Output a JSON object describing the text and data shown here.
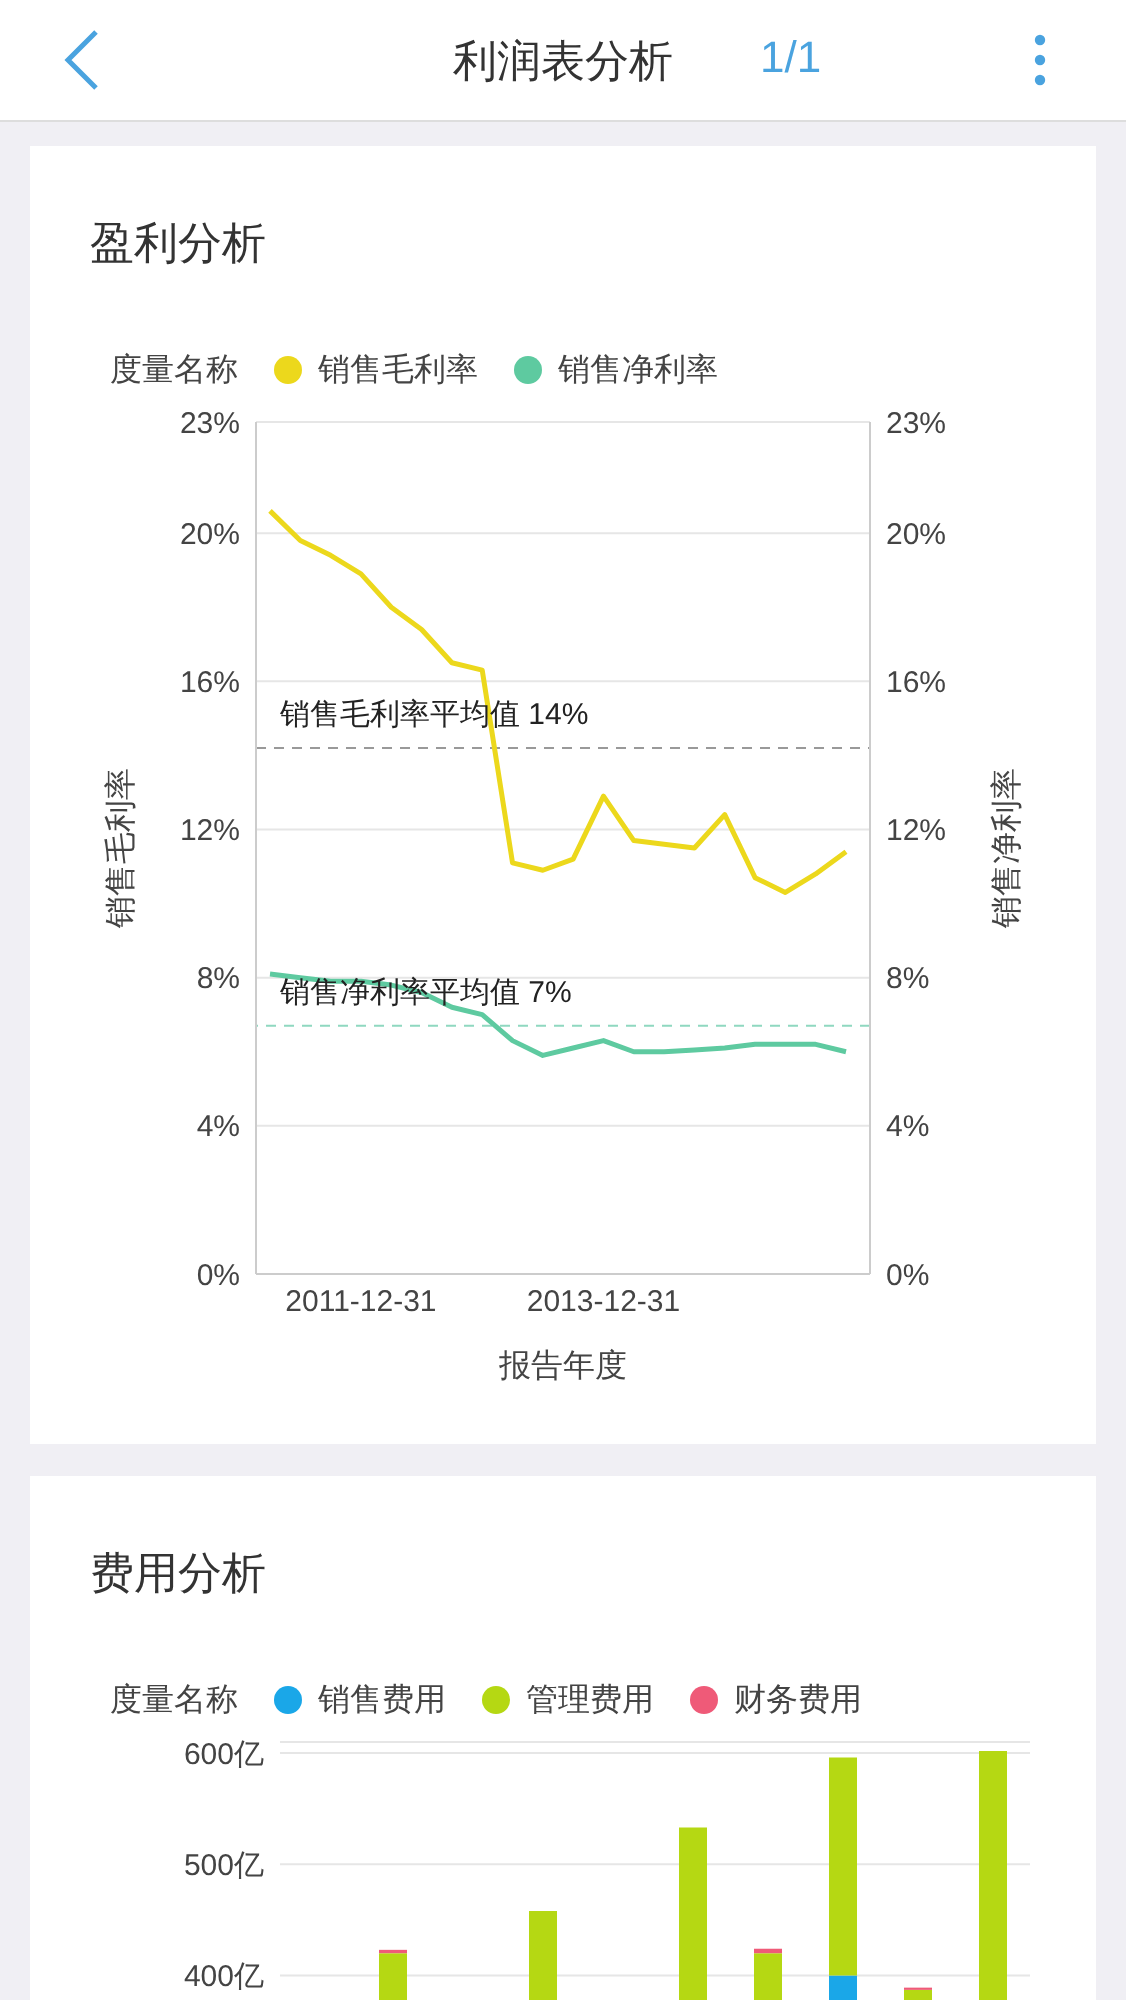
{
  "chart_data": [
    {
      "type": "line",
      "title": "盈利分析",
      "annotations": [
        "利润表分析",
        "1/1"
      ],
      "legend_title": "度量名称",
      "legend": "top left",
      "xlabel": "报告年度",
      "ylabel": "销售毛利率",
      "y2label": "销售净利率",
      "categories": [
        null,
        null,
        null,
        "2011-12-31",
        null,
        null,
        null,
        null,
        null,
        null,
        null,
        "2013-12-31",
        null,
        null,
        null,
        null,
        null,
        null,
        null,
        null
      ],
      "series": [
        {
          "name": "销售毛利率",
          "color": "#ecd81c",
          "values": [
            20.6,
            19.8,
            19.4,
            18.9,
            18.0,
            17.4,
            16.5,
            16.3,
            11.1,
            10.9,
            11.2,
            12.9,
            11.7,
            11.6,
            11.5,
            12.4,
            10.7,
            10.3,
            10.8,
            11.4
          ]
        },
        {
          "name": "销售净利率",
          "color": "#5ecaa0",
          "axis": "y2",
          "values": [
            8.1,
            8.0,
            7.9,
            7.9,
            7.8,
            7.6,
            7.2,
            7.0,
            6.3,
            5.9,
            6.1,
            6.3,
            6.0,
            6.0,
            6.05,
            6.1,
            6.2,
            6.2,
            6.2,
            6.0
          ]
        }
      ],
      "ylim": [
        0,
        23
      ],
      "yticks": [
        {
          "value": 0,
          "label": "0%"
        },
        {
          "value": 4,
          "label": "4%"
        },
        {
          "value": 8,
          "label": "8%"
        },
        {
          "value": 12,
          "label": "12%"
        },
        {
          "value": 16,
          "label": "16%"
        },
        {
          "value": 20,
          "label": "20%"
        },
        {
          "value": 23,
          "label": "23%"
        }
      ],
      "y2lim": [
        0,
        23
      ],
      "y2ticks": [
        {
          "value": 0,
          "label": "0%"
        },
        {
          "value": 4,
          "label": "4%"
        },
        {
          "value": 8,
          "label": "8%"
        },
        {
          "value": 12,
          "label": "12%"
        },
        {
          "value": 16,
          "label": "16%"
        },
        {
          "value": 20,
          "label": "20%"
        },
        {
          "value": 23,
          "label": "23%"
        }
      ],
      "ref_lines": [
        {
          "axis": "y",
          "value": 14.2,
          "label": "销售毛利率平均值  14%",
          "color": "#999999",
          "line_style": "dashed"
        },
        {
          "axis": "y2",
          "value": 6.7,
          "label": "销售净利率平均值  7%",
          "color": "#8fd8c0",
          "line_style": "dashed"
        }
      ],
      "grid": "y",
      "marker": "none",
      "line_style": "solid"
    },
    {
      "type": "bar",
      "title": "费用分析",
      "legend_title": "度量名称",
      "legend": "top left",
      "stacked": true,
      "tick_labels": "y",
      "categories": [
        null,
        null,
        null,
        null,
        null,
        null,
        null,
        null,
        null,
        null
      ],
      "series": [
        {
          "name": "销售费用",
          "color": "#1aa7e8",
          "values": [
            null,
            null,
            null,
            null,
            null,
            null,
            null,
            400,
            null,
            null
          ]
        },
        {
          "name": "管理费用",
          "color": "#b5d813",
          "values": [
            null,
            420,
            null,
            458,
            null,
            533,
            420,
            196,
            387,
            602
          ]
        },
        {
          "name": "财务费用",
          "color": "#ef5a78",
          "values": [
            null,
            3,
            null,
            null,
            null,
            null,
            4,
            null,
            2,
            null
          ]
        }
      ],
      "ylim": [
        0,
        610
      ],
      "yticks": [
        {
          "value": 400,
          "label": "400亿"
        },
        {
          "value": 500,
          "label": "500亿"
        },
        {
          "value": 600,
          "label": "600亿"
        }
      ],
      "grid": "y"
    }
  ]
}
